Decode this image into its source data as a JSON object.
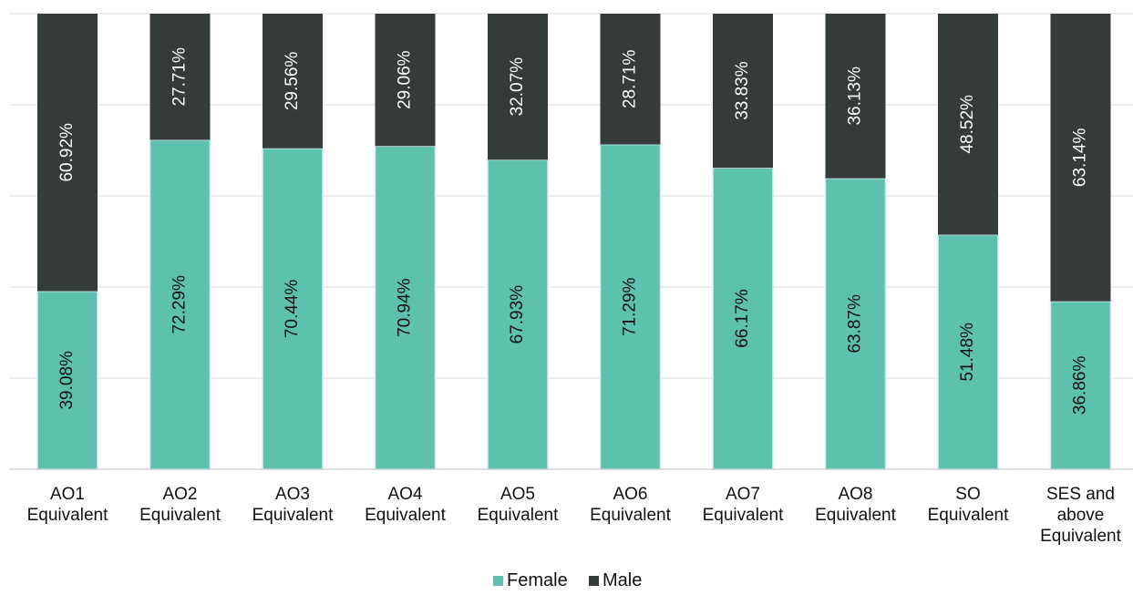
{
  "chart_data": {
    "type": "bar",
    "stacked": true,
    "percent_stacked": true,
    "categories": [
      [
        "AO1",
        "Equivalent"
      ],
      [
        "AO2",
        "Equivalent"
      ],
      [
        "AO3",
        "Equivalent"
      ],
      [
        "AO4",
        "Equivalent"
      ],
      [
        "AO5",
        "Equivalent"
      ],
      [
        "AO6",
        "Equivalent"
      ],
      [
        "AO7",
        "Equivalent"
      ],
      [
        "AO8",
        "Equivalent"
      ],
      [
        "SO",
        "Equivalent"
      ],
      [
        "SES and",
        "above",
        "Equivalent"
      ]
    ],
    "series": [
      {
        "name": "Female",
        "color": "#5dc1ad",
        "label_color": "#111111",
        "values": [
          39.08,
          72.29,
          70.44,
          70.94,
          67.93,
          71.29,
          66.17,
          63.87,
          51.48,
          36.86
        ],
        "labels": [
          "39.08%",
          "72.29%",
          "70.44%",
          "70.94%",
          "67.93%",
          "71.29%",
          "66.17%",
          "63.87%",
          "51.48%",
          "36.86%"
        ]
      },
      {
        "name": "Male",
        "color": "#353b39",
        "label_color": "#ffffff",
        "values": [
          60.92,
          27.71,
          29.56,
          29.06,
          32.07,
          28.71,
          33.83,
          36.13,
          48.52,
          63.14
        ],
        "labels": [
          "60.92%",
          "27.71%",
          "29.56%",
          "29.06%",
          "32.07%",
          "28.71%",
          "33.83%",
          "36.13%",
          "48.52%",
          "63.14%"
        ]
      }
    ],
    "ylim": [
      0,
      100
    ],
    "grid": true,
    "legend": "bottom-center",
    "title": "",
    "xlabel": "",
    "ylabel": ""
  }
}
